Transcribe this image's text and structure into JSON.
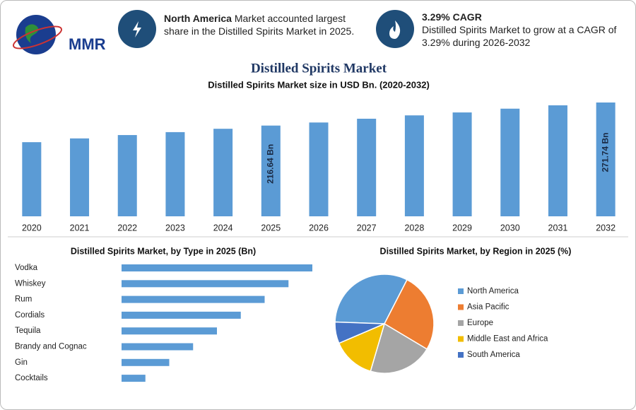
{
  "header": {
    "logo": "MMR",
    "highlight_1": {
      "bold": "North America",
      "text": "Market accounted largest share in the Distilled Spirits Market in 2025."
    },
    "highlight_2": {
      "title": "3.29% CAGR",
      "text": "Distilled Spirits Market to grow at a CAGR of 3.29% during 2026-2032"
    }
  },
  "chart_data": [
    {
      "type": "bar",
      "title": "Distilled Spirits Market",
      "subtitle": "Distilled Spirits Market size in USD Bn. (2020-2032)",
      "categories": [
        "2020",
        "2021",
        "2022",
        "2023",
        "2024",
        "2025",
        "2026",
        "2027",
        "2028",
        "2029",
        "2030",
        "2031",
        "2032"
      ],
      "values": [
        177,
        186,
        194,
        201,
        209,
        216.64,
        224,
        233,
        241,
        248,
        257,
        265,
        271.74
      ],
      "value_labels": [
        null,
        null,
        null,
        null,
        null,
        "216.64 Bn",
        null,
        null,
        null,
        null,
        null,
        null,
        "271.74 Bn"
      ],
      "color": "#5b9bd5"
    },
    {
      "type": "hbar",
      "title": "Distilled Spirits Market, by Type in 2025 (Bn)",
      "categories": [
        "Vodka",
        "Whiskey",
        "Rum",
        "Cordials",
        "Tequila",
        "Brandy and Cognac",
        "Gin",
        "Cocktails"
      ],
      "values": [
        80,
        70,
        60,
        50,
        40,
        30,
        20,
        10
      ],
      "color": "#5b9bd5"
    },
    {
      "type": "pie",
      "title": "Distilled Spirits Market, by Region in 2025 (%)",
      "categories": [
        "North America",
        "Asia Pacific",
        "Europe",
        "Middle East and Africa",
        "South America"
      ],
      "values": [
        32,
        26,
        21,
        14,
        7
      ],
      "colors": [
        "#5b9bd5",
        "#ed7d31",
        "#a5a5a5",
        "#f2bd00",
        "#4472c4"
      ]
    }
  ]
}
